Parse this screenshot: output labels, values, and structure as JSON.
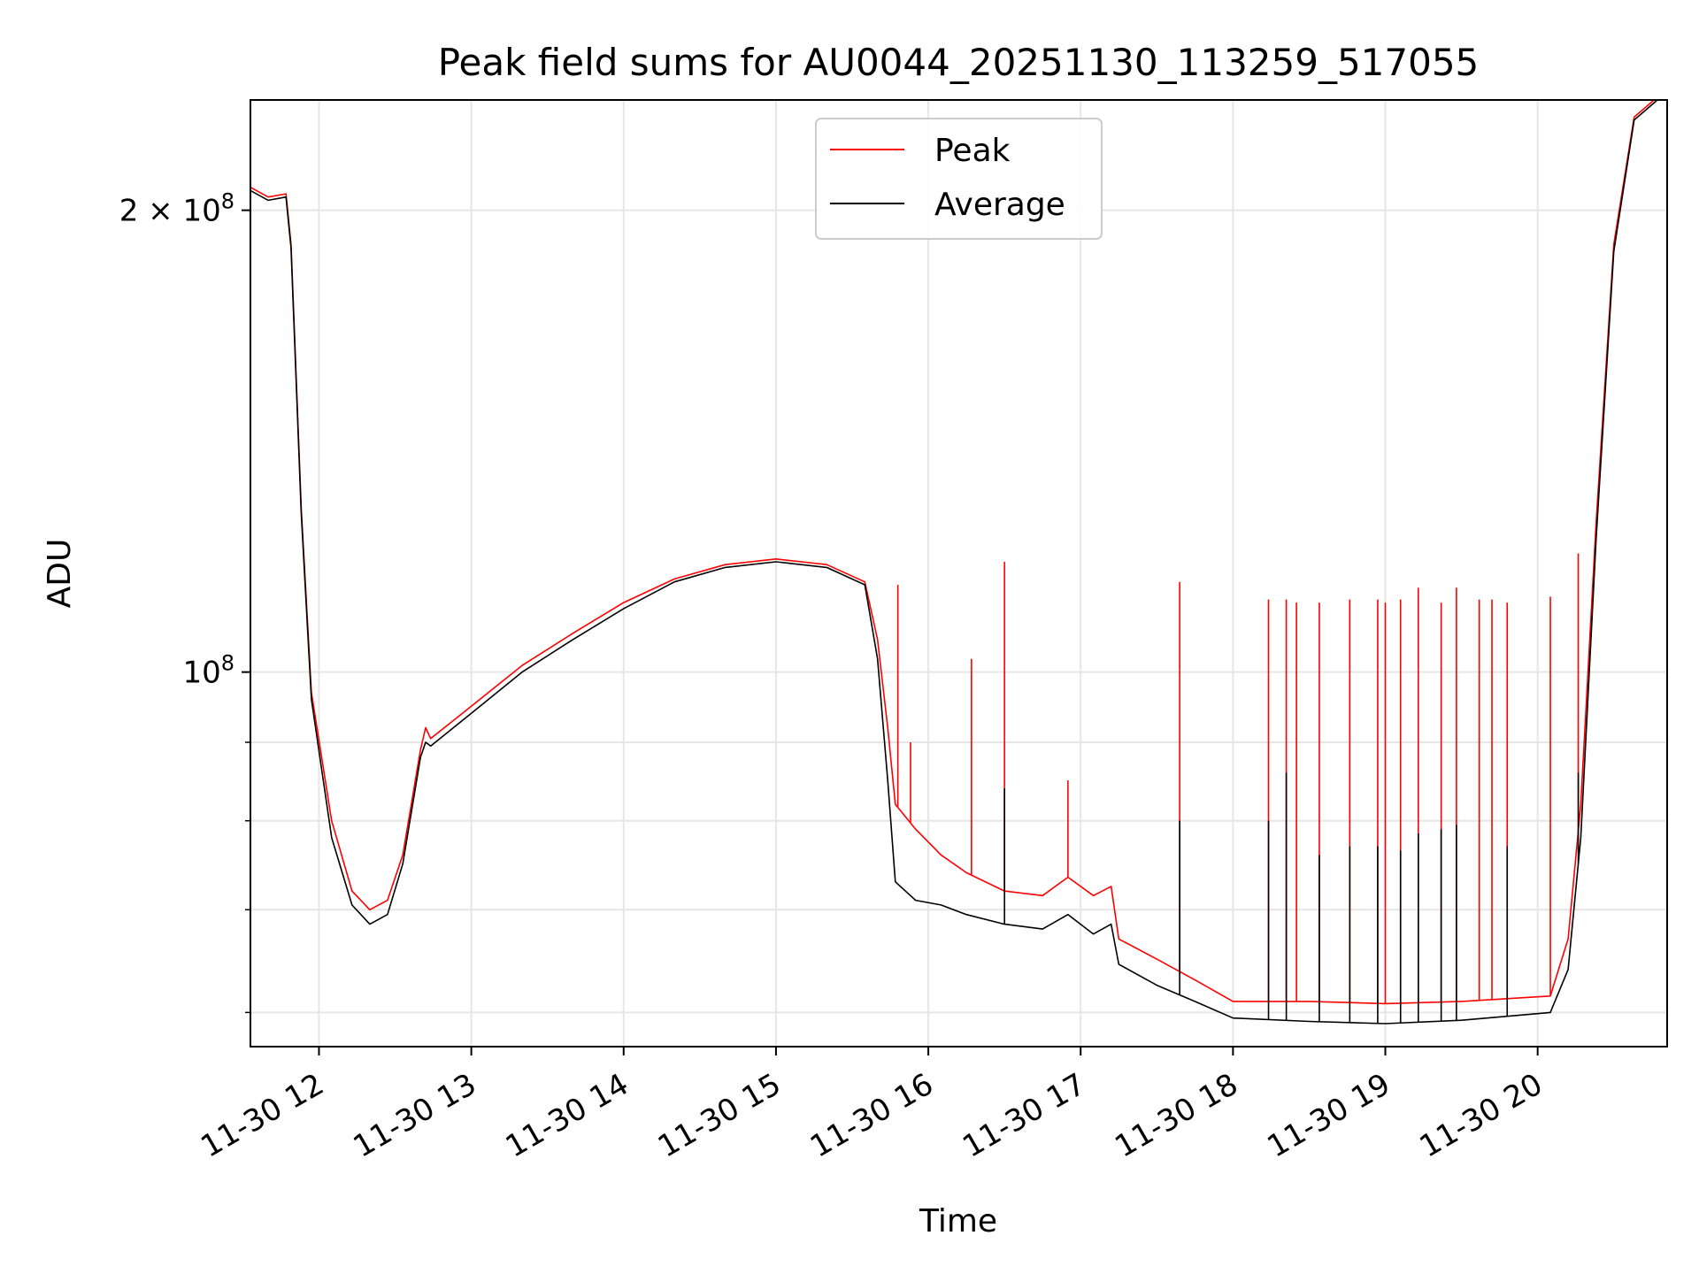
{
  "chart_data": {
    "type": "line",
    "title": "Peak field sums for AU0044_20251130_113259_517055",
    "xlabel": "Time",
    "ylabel": "ADU",
    "xscale": "date",
    "yscale": "log",
    "grid": true,
    "legend_position": "upper center",
    "xlim": [
      "2025-11-30T11:33:00",
      "2025-11-30T20:51:00"
    ],
    "ylim": [
      57000000,
      236000000
    ],
    "x_ticks": [
      {
        "value": "2025-11-30T12:00:00",
        "label": "11-30 12"
      },
      {
        "value": "2025-11-30T13:00:00",
        "label": "11-30 13"
      },
      {
        "value": "2025-11-30T14:00:00",
        "label": "11-30 14"
      },
      {
        "value": "2025-11-30T15:00:00",
        "label": "11-30 15"
      },
      {
        "value": "2025-11-30T16:00:00",
        "label": "11-30 16"
      },
      {
        "value": "2025-11-30T17:00:00",
        "label": "11-30 17"
      },
      {
        "value": "2025-11-30T18:00:00",
        "label": "11-30 18"
      },
      {
        "value": "2025-11-30T19:00:00",
        "label": "11-30 19"
      },
      {
        "value": "2025-11-30T20:00:00",
        "label": "11-30 20"
      }
    ],
    "y_major_ticks": [
      {
        "value": 100000000,
        "base": "10",
        "exp": "8"
      },
      {
        "value": 200000000,
        "mant": "2 × ",
        "base": "10",
        "exp": "8"
      }
    ],
    "y_minor_ticks": [
      60000000,
      70000000,
      80000000,
      90000000
    ],
    "series": [
      {
        "name": "Peak",
        "color": "#ff0000",
        "points": [
          [
            "2025-11-30T11:33:00",
            207000000
          ],
          [
            "2025-11-30T11:40:00",
            204000000
          ],
          [
            "2025-11-30T11:47:00",
            205000000
          ],
          [
            "2025-11-30T11:49:00",
            190000000
          ],
          [
            "2025-11-30T11:53:00",
            128000000
          ],
          [
            "2025-11-30T11:57:00",
            97000000
          ],
          [
            "2025-11-30T12:05:00",
            80000000
          ],
          [
            "2025-11-30T12:13:00",
            72000000
          ],
          [
            "2025-11-30T12:20:00",
            70000000
          ],
          [
            "2025-11-30T12:27:00",
            71000000
          ],
          [
            "2025-11-30T12:33:00",
            76000000
          ],
          [
            "2025-11-30T12:40:00",
            89000000
          ],
          [
            "2025-11-30T12:42:00",
            92000000
          ],
          [
            "2025-11-30T12:44:00",
            90500000
          ],
          [
            "2025-11-30T13:00:00",
            95000000
          ],
          [
            "2025-11-30T13:20:00",
            101000000
          ],
          [
            "2025-11-30T13:40:00",
            106000000
          ],
          [
            "2025-11-30T14:00:00",
            111000000
          ],
          [
            "2025-11-30T14:20:00",
            115000000
          ],
          [
            "2025-11-30T14:40:00",
            117500000
          ],
          [
            "2025-11-30T15:00:00",
            118500000
          ],
          [
            "2025-11-30T15:20:00",
            117500000
          ],
          [
            "2025-11-30T15:35:00",
            114500000
          ],
          [
            "2025-11-30T15:40:00",
            105000000
          ],
          [
            "2025-11-30T15:44:00",
            92000000
          ],
          [
            "2025-11-30T15:47:00",
            82000000
          ],
          [
            "2025-11-30T15:55:00",
            79000000
          ],
          [
            "2025-11-30T16:05:00",
            76000000
          ],
          [
            "2025-11-30T16:15:00",
            74000000
          ],
          [
            "2025-11-30T16:30:00",
            72000000
          ],
          [
            "2025-11-30T16:45:00",
            71500000
          ],
          [
            "2025-11-30T16:55:00",
            73500000
          ],
          [
            "2025-11-30T17:05:00",
            71500000
          ],
          [
            "2025-11-30T17:12:00",
            72500000
          ],
          [
            "2025-11-30T17:15:00",
            67000000
          ],
          [
            "2025-11-30T17:30:00",
            65000000
          ],
          [
            "2025-11-30T17:45:00",
            63000000
          ],
          [
            "2025-11-30T18:00:00",
            61000000
          ],
          [
            "2025-11-30T18:30:00",
            61000000
          ],
          [
            "2025-11-30T19:00:00",
            60800000
          ],
          [
            "2025-11-30T19:30:00",
            61000000
          ],
          [
            "2025-11-30T20:05:00",
            61500000
          ],
          [
            "2025-11-30T20:12:00",
            67000000
          ],
          [
            "2025-11-30T20:17:00",
            82000000
          ],
          [
            "2025-11-30T20:23:00",
            125000000
          ],
          [
            "2025-11-30T20:30:00",
            190000000
          ],
          [
            "2025-11-30T20:38:00",
            230000000
          ],
          [
            "2025-11-30T20:51:00",
            240000000
          ]
        ]
      },
      {
        "name": "Average",
        "color": "#000000",
        "points": [
          [
            "2025-11-30T11:33:00",
            206000000
          ],
          [
            "2025-11-30T11:40:00",
            203000000
          ],
          [
            "2025-11-30T11:47:00",
            204000000
          ],
          [
            "2025-11-30T11:49:00",
            189000000
          ],
          [
            "2025-11-30T11:53:00",
            127000000
          ],
          [
            "2025-11-30T11:57:00",
            96000000
          ],
          [
            "2025-11-30T12:05:00",
            78000000
          ],
          [
            "2025-11-30T12:13:00",
            70500000
          ],
          [
            "2025-11-30T12:20:00",
            68500000
          ],
          [
            "2025-11-30T12:27:00",
            69500000
          ],
          [
            "2025-11-30T12:33:00",
            75000000
          ],
          [
            "2025-11-30T12:40:00",
            88000000
          ],
          [
            "2025-11-30T12:42:00",
            90000000
          ],
          [
            "2025-11-30T12:44:00",
            89500000
          ],
          [
            "2025-11-30T13:00:00",
            94000000
          ],
          [
            "2025-11-30T13:20:00",
            100000000
          ],
          [
            "2025-11-30T13:40:00",
            105000000
          ],
          [
            "2025-11-30T14:00:00",
            110000000
          ],
          [
            "2025-11-30T14:20:00",
            114500000
          ],
          [
            "2025-11-30T14:40:00",
            117000000
          ],
          [
            "2025-11-30T15:00:00",
            118000000
          ],
          [
            "2025-11-30T15:20:00",
            117000000
          ],
          [
            "2025-11-30T15:35:00",
            114000000
          ],
          [
            "2025-11-30T15:40:00",
            102000000
          ],
          [
            "2025-11-30T15:44:00",
            85000000
          ],
          [
            "2025-11-30T15:47:00",
            73000000
          ],
          [
            "2025-11-30T15:55:00",
            71000000
          ],
          [
            "2025-11-30T16:05:00",
            70500000
          ],
          [
            "2025-11-30T16:15:00",
            69500000
          ],
          [
            "2025-11-30T16:30:00",
            68500000
          ],
          [
            "2025-11-30T16:45:00",
            68000000
          ],
          [
            "2025-11-30T16:55:00",
            69500000
          ],
          [
            "2025-11-30T17:05:00",
            67500000
          ],
          [
            "2025-11-30T17:12:00",
            68500000
          ],
          [
            "2025-11-30T17:15:00",
            64500000
          ],
          [
            "2025-11-30T17:30:00",
            62500000
          ],
          [
            "2025-11-30T17:45:00",
            61000000
          ],
          [
            "2025-11-30T18:00:00",
            59500000
          ],
          [
            "2025-11-30T18:30:00",
            59200000
          ],
          [
            "2025-11-30T19:00:00",
            59000000
          ],
          [
            "2025-11-30T19:30:00",
            59300000
          ],
          [
            "2025-11-30T20:05:00",
            60000000
          ],
          [
            "2025-11-30T20:12:00",
            64000000
          ],
          [
            "2025-11-30T20:17:00",
            78000000
          ],
          [
            "2025-11-30T20:23:00",
            122000000
          ],
          [
            "2025-11-30T20:30:00",
            188000000
          ],
          [
            "2025-11-30T20:38:00",
            229000000
          ],
          [
            "2025-11-30T20:51:00",
            239000000
          ]
        ]
      }
    ],
    "spikes": [
      {
        "series": "Peak",
        "x": "2025-11-30T15:48:00",
        "y": 114000000
      },
      {
        "series": "Peak",
        "x": "2025-11-30T15:53:00",
        "y": 90000000
      },
      {
        "series": "Peak",
        "x": "2025-11-30T16:17:00",
        "y": 102000000
      },
      {
        "series": "Peak",
        "x": "2025-11-30T16:30:00",
        "y": 118000000
      },
      {
        "series": "Peak",
        "x": "2025-11-30T16:55:00",
        "y": 85000000
      },
      {
        "series": "Peak",
        "x": "2025-11-30T17:39:00",
        "y": 114500000
      },
      {
        "series": "Peak",
        "x": "2025-11-30T18:14:00",
        "y": 111500000
      },
      {
        "series": "Peak",
        "x": "2025-11-30T18:21:00",
        "y": 111500000
      },
      {
        "series": "Peak",
        "x": "2025-11-30T18:25:00",
        "y": 111000000
      },
      {
        "series": "Peak",
        "x": "2025-11-30T18:34:00",
        "y": 111000000
      },
      {
        "series": "Peak",
        "x": "2025-11-30T18:46:00",
        "y": 111500000
      },
      {
        "series": "Peak",
        "x": "2025-11-30T18:57:00",
        "y": 111500000
      },
      {
        "series": "Peak",
        "x": "2025-11-30T19:00:00",
        "y": 111000000
      },
      {
        "series": "Peak",
        "x": "2025-11-30T19:06:00",
        "y": 111500000
      },
      {
        "series": "Peak",
        "x": "2025-11-30T19:13:00",
        "y": 113500000
      },
      {
        "series": "Peak",
        "x": "2025-11-30T19:22:00",
        "y": 111000000
      },
      {
        "series": "Peak",
        "x": "2025-11-30T19:28:00",
        "y": 113500000
      },
      {
        "series": "Peak",
        "x": "2025-11-30T19:37:00",
        "y": 111500000
      },
      {
        "series": "Peak",
        "x": "2025-11-30T19:42:00",
        "y": 111500000
      },
      {
        "series": "Peak",
        "x": "2025-11-30T19:48:00",
        "y": 111000000
      },
      {
        "series": "Peak",
        "x": "2025-11-30T20:05:00",
        "y": 112000000
      },
      {
        "series": "Peak",
        "x": "2025-11-30T20:16:00",
        "y": 119500000
      },
      {
        "series": "Average",
        "x": "2025-11-30T16:30:00",
        "y": 84000000
      },
      {
        "series": "Average",
        "x": "2025-11-30T17:39:00",
        "y": 80000000
      },
      {
        "series": "Average",
        "x": "2025-11-30T18:14:00",
        "y": 80000000
      },
      {
        "series": "Average",
        "x": "2025-11-30T18:21:00",
        "y": 86000000
      },
      {
        "series": "Average",
        "x": "2025-11-30T18:34:00",
        "y": 76000000
      },
      {
        "series": "Average",
        "x": "2025-11-30T18:46:00",
        "y": 77000000
      },
      {
        "series": "Average",
        "x": "2025-11-30T18:57:00",
        "y": 77000000
      },
      {
        "series": "Average",
        "x": "2025-11-30T19:06:00",
        "y": 76500000
      },
      {
        "series": "Average",
        "x": "2025-11-30T19:13:00",
        "y": 78500000
      },
      {
        "series": "Average",
        "x": "2025-11-30T19:22:00",
        "y": 79000000
      },
      {
        "series": "Average",
        "x": "2025-11-30T19:28:00",
        "y": 79500000
      },
      {
        "series": "Average",
        "x": "2025-11-30T19:48:00",
        "y": 77000000
      },
      {
        "series": "Average",
        "x": "2025-11-30T20:16:00",
        "y": 86000000
      }
    ]
  }
}
